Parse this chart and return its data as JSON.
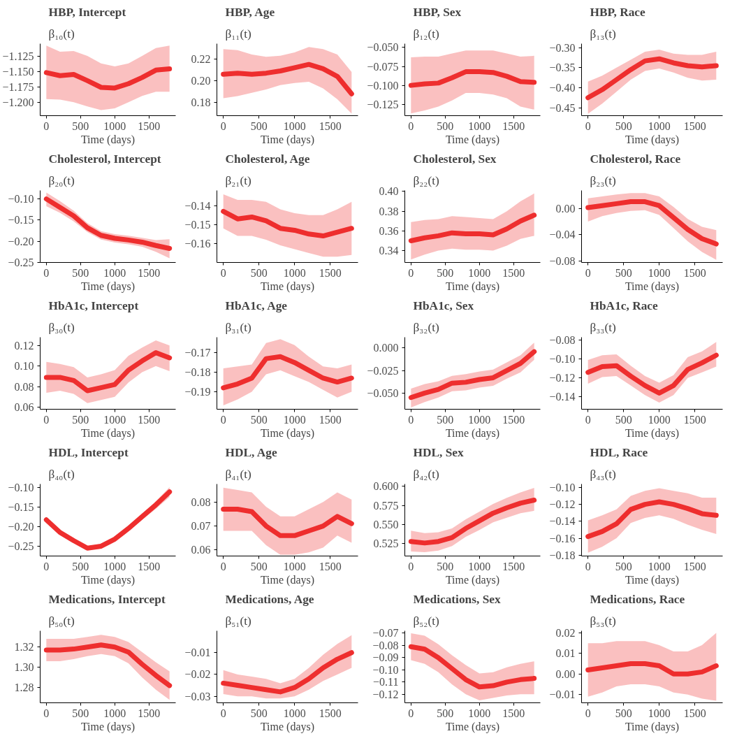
{
  "chart_data": [
    {
      "type": "line",
      "title": "β₁₀(t)",
      "subtitle": "HBP, Intercept",
      "xlabel": "Time (days)",
      "xlim": [
        -90,
        1890
      ],
      "xticks": [
        0,
        500,
        1000,
        1500
      ],
      "ylim": [
        -1.222,
        -1.105
      ],
      "yticks": [
        {
          "value": -1.2,
          "label": "−1.200"
        },
        {
          "value": -1.175,
          "label": "−1.175"
        },
        {
          "value": -1.15,
          "label": "−1.150"
        },
        {
          "value": -1.125,
          "label": "−1.125"
        }
      ],
      "marker": "none",
      "line_style": "solid",
      "x": [
        0,
        200,
        400,
        600,
        800,
        1000,
        1200,
        1400,
        1600,
        1800
      ],
      "series": [
        {
          "color": "#ee2e2e",
          "values": [
            -1.152,
            -1.157,
            -1.155,
            -1.165,
            -1.176,
            -1.177,
            -1.17,
            -1.16,
            -1.148,
            -1.146
          ],
          "lower": [
            -1.195,
            -1.196,
            -1.2,
            -1.207,
            -1.213,
            -1.21,
            -1.2,
            -1.19,
            -1.183,
            -1.183
          ],
          "upper": [
            -1.108,
            -1.118,
            -1.117,
            -1.125,
            -1.137,
            -1.142,
            -1.137,
            -1.125,
            -1.112,
            -1.108
          ]
        }
      ]
    },
    {
      "type": "line",
      "title": "β₁₁(t)",
      "subtitle": "HBP, Age",
      "xlabel": "Time (days)",
      "xlim": [
        -90,
        1890
      ],
      "xticks": [
        0,
        500,
        1000,
        1500
      ],
      "ylim": [
        0.168,
        0.234
      ],
      "yticks": [
        {
          "value": 0.18,
          "label": "0.18"
        },
        {
          "value": 0.2,
          "label": "0.20"
        },
        {
          "value": 0.22,
          "label": "0.22"
        }
      ],
      "marker": "none",
      "line_style": "solid",
      "x": [
        0,
        200,
        400,
        600,
        800,
        1000,
        1200,
        1400,
        1600,
        1800
      ],
      "series": [
        {
          "color": "#ee2e2e",
          "values": [
            0.206,
            0.207,
            0.206,
            0.207,
            0.209,
            0.212,
            0.215,
            0.211,
            0.204,
            0.188
          ],
          "lower": [
            0.184,
            0.186,
            0.189,
            0.192,
            0.196,
            0.198,
            0.199,
            0.193,
            0.183,
            0.17
          ],
          "upper": [
            0.229,
            0.228,
            0.224,
            0.222,
            0.223,
            0.226,
            0.231,
            0.229,
            0.224,
            0.208
          ]
        }
      ]
    },
    {
      "type": "line",
      "title": "β₁₂(t)",
      "subtitle": "HBP, Sex",
      "xlabel": "Time (days)",
      "xlim": [
        -90,
        1890
      ],
      "xticks": [
        0,
        500,
        1000,
        1500
      ],
      "ylim": [
        -0.14,
        -0.045
      ],
      "yticks": [
        {
          "value": -0.125,
          "label": "−0.125"
        },
        {
          "value": -0.1,
          "label": "−0.100"
        },
        {
          "value": -0.075,
          "label": "−0.075"
        },
        {
          "value": -0.05,
          "label": "−0.050"
        }
      ],
      "marker": "none",
      "line_style": "solid",
      "x": [
        0,
        200,
        400,
        600,
        800,
        1000,
        1200,
        1400,
        1600,
        1800
      ],
      "series": [
        {
          "color": "#ee2e2e",
          "values": [
            -0.1,
            -0.098,
            -0.097,
            -0.09,
            -0.082,
            -0.082,
            -0.083,
            -0.088,
            -0.095,
            -0.096
          ],
          "lower": [
            -0.137,
            -0.133,
            -0.128,
            -0.12,
            -0.11,
            -0.11,
            -0.112,
            -0.117,
            -0.128,
            -0.132
          ],
          "upper": [
            -0.063,
            -0.062,
            -0.062,
            -0.058,
            -0.054,
            -0.054,
            -0.054,
            -0.058,
            -0.062,
            -0.061
          ]
        }
      ]
    },
    {
      "type": "line",
      "title": "β₁₃(t)",
      "subtitle": "HBP, Race",
      "xlabel": "Time (days)",
      "xlim": [
        -90,
        1890
      ],
      "xticks": [
        0,
        500,
        1000,
        1500
      ],
      "ylim": [
        -0.47,
        -0.29
      ],
      "yticks": [
        {
          "value": -0.45,
          "label": "−0.45"
        },
        {
          "value": -0.4,
          "label": "−0.40"
        },
        {
          "value": -0.35,
          "label": "−0.35"
        },
        {
          "value": -0.3,
          "label": "−0.30"
        }
      ],
      "marker": "none",
      "line_style": "solid",
      "x": [
        0,
        200,
        400,
        600,
        800,
        1000,
        1200,
        1400,
        1600,
        1800
      ],
      "series": [
        {
          "color": "#ee2e2e",
          "values": [
            -0.425,
            -0.405,
            -0.38,
            -0.355,
            -0.333,
            -0.328,
            -0.338,
            -0.345,
            -0.348,
            -0.345
          ],
          "lower": [
            -0.465,
            -0.44,
            -0.41,
            -0.38,
            -0.358,
            -0.352,
            -0.362,
            -0.375,
            -0.382,
            -0.38
          ],
          "upper": [
            -0.385,
            -0.37,
            -0.35,
            -0.33,
            -0.31,
            -0.305,
            -0.315,
            -0.318,
            -0.318,
            -0.31
          ]
        }
      ]
    },
    {
      "type": "line",
      "title": "β₂₀(t)",
      "subtitle": "Cholesterol, Intercept",
      "xlabel": "Time (days)",
      "xlim": [
        -90,
        1890
      ],
      "xticks": [
        0,
        500,
        1000,
        1500
      ],
      "ylim": [
        -0.25,
        -0.08
      ],
      "yticks": [
        {
          "value": -0.25,
          "label": "−0.25"
        },
        {
          "value": -0.2,
          "label": "−0.20"
        },
        {
          "value": -0.15,
          "label": "−0.15"
        },
        {
          "value": -0.1,
          "label": "−0.10"
        }
      ],
      "marker": "none",
      "line_style": "solid",
      "x": [
        0,
        200,
        400,
        600,
        800,
        1000,
        1200,
        1400,
        1600,
        1800
      ],
      "series": [
        {
          "color": "#ee2e2e",
          "values": [
            -0.1,
            -0.12,
            -0.14,
            -0.168,
            -0.186,
            -0.193,
            -0.197,
            -0.202,
            -0.21,
            -0.217
          ],
          "lower": [
            -0.117,
            -0.133,
            -0.153,
            -0.178,
            -0.196,
            -0.203,
            -0.207,
            -0.213,
            -0.225,
            -0.24
          ],
          "upper": [
            -0.085,
            -0.105,
            -0.128,
            -0.157,
            -0.176,
            -0.183,
            -0.187,
            -0.192,
            -0.197,
            -0.195
          ]
        }
      ]
    },
    {
      "type": "line",
      "title": "β₂₁(t)",
      "subtitle": "Cholesterol, Age",
      "xlabel": "Time (days)",
      "xlim": [
        -90,
        1890
      ],
      "xticks": [
        0,
        500,
        1000,
        1500
      ],
      "ylim": [
        -0.17,
        -0.132
      ],
      "yticks": [
        {
          "value": -0.16,
          "label": "−0.16"
        },
        {
          "value": -0.15,
          "label": "−0.15"
        },
        {
          "value": -0.14,
          "label": "−0.14"
        }
      ],
      "marker": "none",
      "line_style": "solid",
      "x": [
        0,
        200,
        400,
        600,
        800,
        1000,
        1200,
        1400,
        1600,
        1800
      ],
      "series": [
        {
          "color": "#ee2e2e",
          "values": [
            -0.143,
            -0.147,
            -0.146,
            -0.148,
            -0.152,
            -0.153,
            -0.155,
            -0.156,
            -0.154,
            -0.152
          ],
          "lower": [
            -0.152,
            -0.156,
            -0.156,
            -0.158,
            -0.161,
            -0.163,
            -0.165,
            -0.167,
            -0.167,
            -0.166
          ],
          "upper": [
            -0.134,
            -0.137,
            -0.137,
            -0.138,
            -0.142,
            -0.144,
            -0.145,
            -0.145,
            -0.142,
            -0.138
          ]
        }
      ]
    },
    {
      "type": "line",
      "title": "β₂₂(t)",
      "subtitle": "Cholesterol, Sex",
      "xlabel": "Time (days)",
      "xlim": [
        -90,
        1890
      ],
      "xticks": [
        0,
        500,
        1000,
        1500
      ],
      "ylim": [
        0.328,
        0.401
      ],
      "yticks": [
        {
          "value": 0.34,
          "label": "0.34"
        },
        {
          "value": 0.36,
          "label": "0.36"
        },
        {
          "value": 0.38,
          "label": "0.38"
        },
        {
          "value": 0.4,
          "label": "0.40"
        }
      ],
      "marker": "none",
      "line_style": "solid",
      "x": [
        0,
        200,
        400,
        600,
        800,
        1000,
        1200,
        1400,
        1600,
        1800
      ],
      "series": [
        {
          "color": "#ee2e2e",
          "values": [
            0.35,
            0.353,
            0.355,
            0.358,
            0.357,
            0.357,
            0.356,
            0.362,
            0.37,
            0.376
          ],
          "lower": [
            0.331,
            0.336,
            0.34,
            0.342,
            0.341,
            0.341,
            0.34,
            0.345,
            0.352,
            0.355
          ],
          "upper": [
            0.369,
            0.371,
            0.372,
            0.375,
            0.374,
            0.373,
            0.372,
            0.38,
            0.39,
            0.398
          ]
        }
      ]
    },
    {
      "type": "line",
      "title": "β₂₃(t)",
      "subtitle": "Cholesterol, Race",
      "xlabel": "Time (days)",
      "xlim": [
        -90,
        1890
      ],
      "xticks": [
        0,
        500,
        1000,
        1500
      ],
      "ylim": [
        -0.082,
        0.027
      ],
      "yticks": [
        {
          "value": -0.08,
          "label": "−0.08"
        },
        {
          "value": -0.04,
          "label": "−0.04"
        },
        {
          "value": 0,
          "label": "0.00"
        }
      ],
      "marker": "none",
      "line_style": "solid",
      "x": [
        0,
        200,
        400,
        600,
        800,
        1000,
        1200,
        1400,
        1600,
        1800
      ],
      "series": [
        {
          "color": "#ee2e2e",
          "values": [
            0.001,
            0.004,
            0.007,
            0.01,
            0.01,
            0.004,
            -0.014,
            -0.032,
            -0.046,
            -0.054
          ],
          "lower": [
            -0.02,
            -0.012,
            -0.007,
            -0.004,
            -0.003,
            -0.01,
            -0.03,
            -0.05,
            -0.066,
            -0.078
          ],
          "upper": [
            0.015,
            0.018,
            0.021,
            0.023,
            0.023,
            0.018,
            0.002,
            -0.016,
            -0.028,
            -0.033
          ]
        }
      ]
    },
    {
      "type": "line",
      "title": "β₃₀(t)",
      "subtitle": "HbA1c, Intercept",
      "xlabel": "Time (days)",
      "xlim": [
        -90,
        1890
      ],
      "xticks": [
        0,
        500,
        1000,
        1500
      ],
      "ylim": [
        0.058,
        0.128
      ],
      "yticks": [
        {
          "value": 0.06,
          "label": "0.06"
        },
        {
          "value": 0.08,
          "label": "0.08"
        },
        {
          "value": 0.1,
          "label": "0.10"
        },
        {
          "value": 0.12,
          "label": "0.12"
        }
      ],
      "marker": "none",
      "line_style": "solid",
      "x": [
        0,
        200,
        400,
        600,
        800,
        1000,
        1200,
        1400,
        1600,
        1800
      ],
      "series": [
        {
          "color": "#ee2e2e",
          "values": [
            0.089,
            0.089,
            0.086,
            0.076,
            0.079,
            0.082,
            0.096,
            0.105,
            0.113,
            0.108
          ],
          "lower": [
            0.074,
            0.076,
            0.073,
            0.064,
            0.067,
            0.07,
            0.084,
            0.094,
            0.1,
            0.095
          ],
          "upper": [
            0.104,
            0.102,
            0.099,
            0.089,
            0.092,
            0.096,
            0.11,
            0.118,
            0.125,
            0.12
          ]
        }
      ]
    },
    {
      "type": "line",
      "title": "β₃₁(t)",
      "subtitle": "HbA1c, Age",
      "xlabel": "Time (days)",
      "xlim": [
        -90,
        1890
      ],
      "xticks": [
        0,
        500,
        1000,
        1500
      ],
      "ylim": [
        -0.199,
        -0.162
      ],
      "yticks": [
        {
          "value": -0.19,
          "label": "−0.19"
        },
        {
          "value": -0.18,
          "label": "−0.18"
        },
        {
          "value": -0.17,
          "label": "−0.17"
        }
      ],
      "marker": "none",
      "line_style": "solid",
      "x": [
        0,
        200,
        400,
        600,
        800,
        1000,
        1200,
        1400,
        1600,
        1800
      ],
      "series": [
        {
          "color": "#ee2e2e",
          "values": [
            -0.188,
            -0.186,
            -0.183,
            -0.173,
            -0.172,
            -0.175,
            -0.179,
            -0.183,
            -0.185,
            -0.183
          ],
          "lower": [
            -0.197,
            -0.194,
            -0.19,
            -0.181,
            -0.179,
            -0.182,
            -0.185,
            -0.189,
            -0.193,
            -0.19
          ],
          "upper": [
            -0.178,
            -0.177,
            -0.176,
            -0.165,
            -0.163,
            -0.166,
            -0.172,
            -0.177,
            -0.178,
            -0.176
          ]
        }
      ]
    },
    {
      "type": "line",
      "title": "β₃₂(t)",
      "subtitle": "HbA1c, Sex",
      "xlabel": "Time (days)",
      "xlim": [
        -90,
        1890
      ],
      "xticks": [
        0,
        500,
        1000,
        1500
      ],
      "ylim": [
        -0.068,
        0.012
      ],
      "yticks": [
        {
          "value": -0.05,
          "label": "−0.050"
        },
        {
          "value": -0.025,
          "label": "−0.025"
        },
        {
          "value": 0,
          "label": "0.000"
        }
      ],
      "marker": "none",
      "line_style": "solid",
      "x": [
        0,
        200,
        400,
        600,
        800,
        1000,
        1200,
        1400,
        1600,
        1800
      ],
      "series": [
        {
          "color": "#ee2e2e",
          "values": [
            -0.055,
            -0.05,
            -0.046,
            -0.039,
            -0.038,
            -0.035,
            -0.033,
            -0.025,
            -0.017,
            -0.004
          ],
          "lower": [
            -0.066,
            -0.06,
            -0.055,
            -0.048,
            -0.047,
            -0.044,
            -0.042,
            -0.034,
            -0.027,
            -0.013
          ],
          "upper": [
            -0.045,
            -0.04,
            -0.037,
            -0.031,
            -0.029,
            -0.026,
            -0.024,
            -0.016,
            -0.008,
            0.006
          ]
        }
      ]
    },
    {
      "type": "line",
      "title": "β₃₃(t)",
      "subtitle": "HbA1c, Race",
      "xlabel": "Time (days)",
      "xlim": [
        -90,
        1890
      ],
      "xticks": [
        0,
        500,
        1000,
        1500
      ],
      "ylim": [
        -0.153,
        -0.077
      ],
      "yticks": [
        {
          "value": -0.14,
          "label": "−0.14"
        },
        {
          "value": -0.12,
          "label": "−0.12"
        },
        {
          "value": -0.1,
          "label": "−0.10"
        },
        {
          "value": -0.08,
          "label": "−0.08"
        }
      ],
      "marker": "none",
      "line_style": "solid",
      "x": [
        0,
        200,
        400,
        600,
        800,
        1000,
        1200,
        1400,
        1600,
        1800
      ],
      "series": [
        {
          "color": "#ee2e2e",
          "values": [
            -0.114,
            -0.108,
            -0.107,
            -0.118,
            -0.128,
            -0.136,
            -0.128,
            -0.111,
            -0.104,
            -0.096
          ],
          "lower": [
            -0.126,
            -0.119,
            -0.118,
            -0.128,
            -0.138,
            -0.146,
            -0.138,
            -0.12,
            -0.114,
            -0.108
          ],
          "upper": [
            -0.101,
            -0.096,
            -0.095,
            -0.107,
            -0.118,
            -0.125,
            -0.117,
            -0.098,
            -0.092,
            -0.082
          ]
        }
      ]
    },
    {
      "type": "line",
      "title": "β₄₀(t)",
      "subtitle": "HDL, Intercept",
      "xlabel": "Time (days)",
      "xlim": [
        -90,
        1890
      ],
      "xticks": [
        0,
        500,
        1000,
        1500
      ],
      "ylim": [
        -0.275,
        -0.092
      ],
      "yticks": [
        {
          "value": -0.25,
          "label": "−0.25"
        },
        {
          "value": -0.2,
          "label": "−0.20"
        },
        {
          "value": -0.15,
          "label": "−0.15"
        },
        {
          "value": -0.1,
          "label": "−0.10"
        }
      ],
      "marker": "none",
      "line_style": "solid",
      "x": [
        0,
        200,
        400,
        600,
        800,
        1000,
        1200,
        1400,
        1600,
        1800
      ],
      "series": [
        {
          "color": "#ee2e2e",
          "values": [
            -0.183,
            -0.215,
            -0.236,
            -0.255,
            -0.25,
            -0.232,
            -0.205,
            -0.175,
            -0.145,
            -0.112
          ],
          "lower": [
            -0.19,
            -0.22,
            -0.24,
            -0.26,
            -0.256,
            -0.238,
            -0.212,
            -0.183,
            -0.155,
            -0.125
          ],
          "upper": [
            -0.175,
            -0.209,
            -0.23,
            -0.25,
            -0.244,
            -0.226,
            -0.198,
            -0.167,
            -0.136,
            -0.1
          ]
        }
      ]
    },
    {
      "type": "line",
      "title": "β₄₁(t)",
      "subtitle": "HDL, Age",
      "xlabel": "Time (days)",
      "xlim": [
        -90,
        1890
      ],
      "xticks": [
        0,
        500,
        1000,
        1500
      ],
      "ylim": [
        0.0575,
        0.0875
      ],
      "yticks": [
        {
          "value": 0.06,
          "label": "0.06"
        },
        {
          "value": 0.07,
          "label": "0.07"
        },
        {
          "value": 0.08,
          "label": "0.08"
        }
      ],
      "marker": "none",
      "line_style": "solid",
      "x": [
        0,
        200,
        400,
        600,
        800,
        1000,
        1200,
        1400,
        1600,
        1800
      ],
      "series": [
        {
          "color": "#ee2e2e",
          "values": [
            0.077,
            0.077,
            0.076,
            0.07,
            0.066,
            0.066,
            0.068,
            0.07,
            0.074,
            0.071
          ],
          "lower": [
            0.068,
            0.068,
            0.068,
            0.062,
            0.058,
            0.058,
            0.059,
            0.061,
            0.066,
            0.063
          ],
          "upper": [
            0.086,
            0.085,
            0.084,
            0.078,
            0.074,
            0.074,
            0.077,
            0.08,
            0.084,
            0.081
          ]
        }
      ]
    },
    {
      "type": "line",
      "title": "β₄₂(t)",
      "subtitle": "HDL, Sex",
      "xlabel": "Time (days)",
      "xlim": [
        -90,
        1890
      ],
      "xticks": [
        0,
        500,
        1000,
        1500
      ],
      "ylim": [
        0.509,
        0.603
      ],
      "yticks": [
        {
          "value": 0.525,
          "label": "0.525"
        },
        {
          "value": 0.55,
          "label": "0.550"
        },
        {
          "value": 0.575,
          "label": "0.575"
        },
        {
          "value": 0.6,
          "label": "0.600"
        }
      ],
      "marker": "none",
      "line_style": "solid",
      "x": [
        0,
        200,
        400,
        600,
        800,
        1000,
        1200,
        1400,
        1600,
        1800
      ],
      "series": [
        {
          "color": "#ee2e2e",
          "values": [
            0.528,
            0.526,
            0.528,
            0.533,
            0.545,
            0.555,
            0.565,
            0.572,
            0.578,
            0.582
          ],
          "lower": [
            0.515,
            0.514,
            0.516,
            0.522,
            0.534,
            0.543,
            0.553,
            0.559,
            0.565,
            0.568
          ],
          "upper": [
            0.542,
            0.539,
            0.54,
            0.545,
            0.557,
            0.567,
            0.577,
            0.585,
            0.592,
            0.598
          ]
        }
      ]
    },
    {
      "type": "line",
      "title": "β₄₃(t)",
      "subtitle": "HDL, Race",
      "xlabel": "Time (days)",
      "xlim": [
        -90,
        1890
      ],
      "xticks": [
        0,
        500,
        1000,
        1500
      ],
      "ylim": [
        -0.181,
        -0.096
      ],
      "yticks": [
        {
          "value": -0.18,
          "label": "−0.18"
        },
        {
          "value": -0.16,
          "label": "−0.16"
        },
        {
          "value": -0.14,
          "label": "−0.14"
        },
        {
          "value": -0.12,
          "label": "−0.12"
        },
        {
          "value": -0.1,
          "label": "−0.10"
        }
      ],
      "marker": "none",
      "line_style": "solid",
      "x": [
        0,
        200,
        400,
        600,
        800,
        1000,
        1200,
        1400,
        1600,
        1800
      ],
      "series": [
        {
          "color": "#ee2e2e",
          "values": [
            -0.158,
            -0.152,
            -0.143,
            -0.126,
            -0.12,
            -0.117,
            -0.12,
            -0.125,
            -0.131,
            -0.133
          ],
          "lower": [
            -0.177,
            -0.17,
            -0.16,
            -0.142,
            -0.136,
            -0.133,
            -0.137,
            -0.144,
            -0.15,
            -0.155
          ],
          "upper": [
            -0.139,
            -0.133,
            -0.126,
            -0.11,
            -0.104,
            -0.101,
            -0.104,
            -0.107,
            -0.112,
            -0.112
          ]
        }
      ]
    },
    {
      "type": "line",
      "title": "β₅₀(t)",
      "subtitle": "Medications, Intercept",
      "xlabel": "Time (days)",
      "xlim": [
        -90,
        1890
      ],
      "xticks": [
        0,
        500,
        1000,
        1500
      ],
      "ylim": [
        1.265,
        1.336
      ],
      "yticks": [
        {
          "value": 1.28,
          "label": "1.28"
        },
        {
          "value": 1.3,
          "label": "1.30"
        },
        {
          "value": 1.32,
          "label": "1.32"
        }
      ],
      "marker": "none",
      "line_style": "solid",
      "x": [
        0,
        200,
        400,
        600,
        800,
        1000,
        1200,
        1400,
        1600,
        1800
      ],
      "series": [
        {
          "color": "#ee2e2e",
          "values": [
            1.317,
            1.317,
            1.318,
            1.32,
            1.322,
            1.32,
            1.315,
            1.303,
            1.292,
            1.282
          ],
          "lower": [
            1.306,
            1.306,
            1.308,
            1.311,
            1.313,
            1.311,
            1.304,
            1.29,
            1.278,
            1.268
          ],
          "upper": [
            1.328,
            1.328,
            1.328,
            1.33,
            1.332,
            1.33,
            1.325,
            1.315,
            1.305,
            1.296
          ]
        }
      ]
    },
    {
      "type": "line",
      "title": "β₅₁(t)",
      "subtitle": "Medications, Age",
      "xlabel": "Time (days)",
      "xlim": [
        -90,
        1890
      ],
      "xticks": [
        0,
        500,
        1000,
        1500
      ],
      "ylim": [
        -0.033,
        0.0
      ],
      "yticks": [
        {
          "value": -0.03,
          "label": "−0.03"
        },
        {
          "value": -0.02,
          "label": "−0.02"
        },
        {
          "value": -0.01,
          "label": "−0.01"
        }
      ],
      "marker": "none",
      "line_style": "solid",
      "x": [
        0,
        200,
        400,
        600,
        800,
        1000,
        1200,
        1400,
        1600,
        1800
      ],
      "series": [
        {
          "color": "#ee2e2e",
          "values": [
            -0.024,
            -0.025,
            -0.026,
            -0.027,
            -0.028,
            -0.026,
            -0.022,
            -0.017,
            -0.013,
            -0.01
          ],
          "lower": [
            -0.029,
            -0.03,
            -0.03,
            -0.031,
            -0.031,
            -0.03,
            -0.027,
            -0.023,
            -0.02,
            -0.017
          ],
          "upper": [
            -0.018,
            -0.02,
            -0.021,
            -0.022,
            -0.024,
            -0.022,
            -0.017,
            -0.011,
            -0.006,
            -0.002
          ]
        }
      ]
    },
    {
      "type": "line",
      "title": "β₅₂(t)",
      "subtitle": "Medications, Sex",
      "xlabel": "Time (days)",
      "xlim": [
        -90,
        1890
      ],
      "xticks": [
        0,
        500,
        1000,
        1500
      ],
      "ylim": [
        -0.127,
        -0.068
      ],
      "yticks": [
        {
          "value": -0.12,
          "label": "−0.12"
        },
        {
          "value": -0.11,
          "label": "−0.11"
        },
        {
          "value": -0.1,
          "label": "−0.10"
        },
        {
          "value": -0.09,
          "label": "−0.09"
        },
        {
          "value": -0.08,
          "label": "−0.08"
        },
        {
          "value": -0.07,
          "label": "−0.07"
        }
      ],
      "marker": "none",
      "line_style": "solid",
      "x": [
        0,
        200,
        400,
        600,
        800,
        1000,
        1200,
        1400,
        1600,
        1800
      ],
      "series": [
        {
          "color": "#ee2e2e",
          "values": [
            -0.081,
            -0.083,
            -0.09,
            -0.099,
            -0.108,
            -0.114,
            -0.113,
            -0.11,
            -0.108,
            -0.107
          ],
          "lower": [
            -0.092,
            -0.095,
            -0.102,
            -0.112,
            -0.12,
            -0.125,
            -0.123,
            -0.121,
            -0.12,
            -0.12
          ],
          "upper": [
            -0.07,
            -0.072,
            -0.079,
            -0.088,
            -0.096,
            -0.103,
            -0.102,
            -0.098,
            -0.095,
            -0.093
          ]
        }
      ]
    },
    {
      "type": "line",
      "title": "β₅₃(t)",
      "subtitle": "Medications, Race",
      "xlabel": "Time (days)",
      "xlim": [
        -90,
        1890
      ],
      "xticks": [
        0,
        500,
        1000,
        1500
      ],
      "ylim": [
        -0.014,
        0.021
      ],
      "yticks": [
        {
          "value": -0.01,
          "label": "−0.01"
        },
        {
          "value": 0,
          "label": "0.00"
        },
        {
          "value": 0.01,
          "label": "0.01"
        },
        {
          "value": 0.02,
          "label": "0.02"
        }
      ],
      "marker": "none",
      "line_style": "solid",
      "x": [
        0,
        200,
        400,
        600,
        800,
        1000,
        1200,
        1400,
        1600,
        1800
      ],
      "series": [
        {
          "color": "#ee2e2e",
          "values": [
            0.002,
            0.003,
            0.004,
            0.005,
            0.005,
            0.004,
            0.0,
            0.0,
            0.001,
            0.004
          ],
          "lower": [
            -0.011,
            -0.009,
            -0.006,
            -0.005,
            -0.005,
            -0.006,
            -0.009,
            -0.01,
            -0.012,
            -0.013
          ],
          "upper": [
            0.015,
            0.015,
            0.016,
            0.016,
            0.016,
            0.014,
            0.011,
            0.011,
            0.014,
            0.02
          ]
        }
      ]
    }
  ]
}
